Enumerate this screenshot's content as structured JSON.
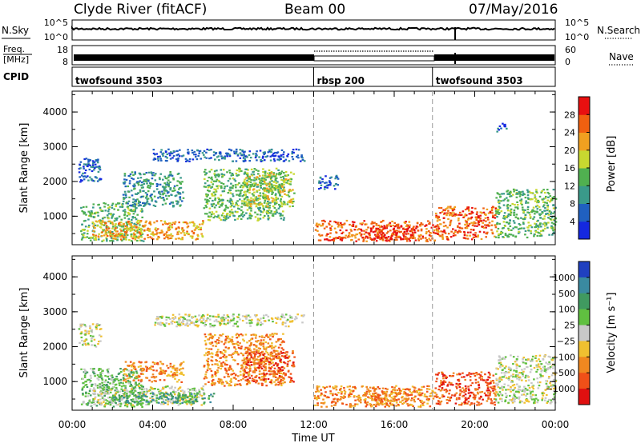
{
  "header": {
    "station": "Clyde River (fitACF)",
    "beam": "Beam 00",
    "date": "07/May/2016"
  },
  "panels": {
    "nsky": {
      "label": "N.Sky",
      "left_ticks": [
        "10^5",
        "10^0"
      ],
      "right_ticks": [
        "10^5",
        "10^0"
      ],
      "right_label": "N.Search"
    },
    "freq": {
      "label_line1": "Freq.",
      "label_line2": "[MHz]",
      "left_ticks": [
        "18",
        "8"
      ],
      "right_ticks": [
        "60",
        "0"
      ],
      "right_label": "Nave"
    },
    "cpid": {
      "label": "CPID",
      "segments": [
        {
          "name": "twofsound 3503",
          "start_hour": 0,
          "end_hour": 12
        },
        {
          "name": "rbsp 200",
          "start_hour": 12,
          "end_hour": 17.9
        },
        {
          "name": "twofsound 3503",
          "start_hour": 17.9,
          "end_hour": 24
        }
      ]
    }
  },
  "chart_data": [
    {
      "type": "heatmap",
      "name": "power",
      "ylabel": "Slant Range [km]",
      "yticks": [
        "1000",
        "2000",
        "3000",
        "4000"
      ],
      "ylim": [
        180,
        4600
      ],
      "colorbar": {
        "label": "Power [dB]",
        "ticks": [
          "4",
          "8",
          "12",
          "16",
          "20",
          "24",
          "28"
        ],
        "colors": [
          "#1428e0",
          "#2060c0",
          "#3a9a8a",
          "#50b050",
          "#c8d830",
          "#f0a020",
          "#f06010",
          "#e81010"
        ]
      },
      "regions": [
        {
          "t0": 0.4,
          "t1": 3.5,
          "r0": 300,
          "r1": 1400,
          "level": 3
        },
        {
          "t0": 1.0,
          "t1": 6.5,
          "r0": 350,
          "r1": 900,
          "level": 5
        },
        {
          "t0": 2.5,
          "t1": 5.5,
          "r0": 1300,
          "r1": 2300,
          "level": 2
        },
        {
          "t0": 4.0,
          "t1": 11.5,
          "r0": 2600,
          "r1": 2950,
          "level": 1
        },
        {
          "t0": 6.5,
          "t1": 10.5,
          "r0": 900,
          "r1": 2400,
          "level": 3
        },
        {
          "t0": 8.5,
          "t1": 11.0,
          "r0": 1300,
          "r1": 2300,
          "level": 4
        },
        {
          "t0": 12.0,
          "t1": 18.0,
          "r0": 300,
          "r1": 900,
          "level": 6
        },
        {
          "t0": 14.5,
          "t1": 17.0,
          "r0": 350,
          "r1": 750,
          "level": 7
        },
        {
          "t0": 18.0,
          "t1": 21.0,
          "r0": 350,
          "r1": 1300,
          "level": 6
        },
        {
          "t0": 21.0,
          "t1": 24.0,
          "r0": 400,
          "r1": 1800,
          "level": 3
        },
        {
          "t0": 0.3,
          "t1": 1.4,
          "r0": 2000,
          "r1": 2700,
          "level": 1
        },
        {
          "t0": 12.2,
          "t1": 13.2,
          "r0": 1800,
          "r1": 2200,
          "level": 1
        },
        {
          "t0": 21.0,
          "t1": 21.6,
          "r0": 3450,
          "r1": 3700,
          "level": 1
        }
      ]
    },
    {
      "type": "heatmap",
      "name": "velocity",
      "ylabel": "Slant Range [km]",
      "yticks": [
        "1000",
        "2000",
        "3000",
        "4000"
      ],
      "ylim": [
        180,
        4600
      ],
      "colorbar": {
        "label": "Velocity [m s⁻¹]",
        "ticks": [
          "1000",
          "500",
          "100",
          "25",
          "−25",
          "−100",
          "−500",
          "−1000"
        ],
        "colors": [
          "#2040c0",
          "#3a8aa0",
          "#409a60",
          "#60c040",
          "#c8c8c8",
          "#f0c030",
          "#f08820",
          "#f05018",
          "#e01010"
        ]
      },
      "regions": [
        {
          "t0": 0.4,
          "t1": 3.5,
          "r0": 300,
          "r1": 1400,
          "level": 3
        },
        {
          "t0": 1.0,
          "t1": 6.5,
          "r0": 350,
          "r1": 900,
          "level": 4
        },
        {
          "t0": 2.5,
          "t1": 5.5,
          "r0": 1000,
          "r1": 1600,
          "level": 6
        },
        {
          "t0": 4.0,
          "t1": 11.5,
          "r0": 2600,
          "r1": 2950,
          "level": 4
        },
        {
          "t0": 6.5,
          "t1": 10.5,
          "r0": 900,
          "r1": 2400,
          "level": 6
        },
        {
          "t0": 8.5,
          "t1": 11.0,
          "r0": 1000,
          "r1": 1900,
          "level": 7
        },
        {
          "t0": 12.0,
          "t1": 18.0,
          "r0": 300,
          "r1": 900,
          "level": 6
        },
        {
          "t0": 14.5,
          "t1": 17.0,
          "r0": 350,
          "r1": 750,
          "level": 6
        },
        {
          "t0": 18.0,
          "t1": 21.0,
          "r0": 350,
          "r1": 1300,
          "level": 7
        },
        {
          "t0": 21.0,
          "t1": 24.0,
          "r0": 400,
          "r1": 1800,
          "level": 4
        },
        {
          "t0": 0.3,
          "t1": 1.4,
          "r0": 2000,
          "r1": 2700,
          "level": 4
        },
        {
          "t0": 2.0,
          "t1": 7.0,
          "r0": 400,
          "r1": 700,
          "level": 2
        }
      ]
    }
  ],
  "xaxis": {
    "label": "Time UT",
    "ticks": [
      "00:00",
      "04:00",
      "08:00",
      "12:00",
      "16:00",
      "20:00",
      "00:00"
    ]
  }
}
